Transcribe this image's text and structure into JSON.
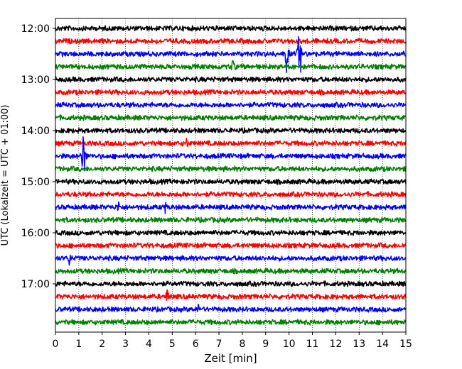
{
  "chart_data": {
    "type": "line",
    "title": "",
    "xlabel": "Zeit  [min]",
    "ylabel": "UTC (Lokalzeit = UTC + 01:00)",
    "xlim": [
      0,
      15
    ],
    "x_ticks": [
      "0",
      "1",
      "2",
      "3",
      "4",
      "5",
      "6",
      "7",
      "8",
      "9",
      "10",
      "11",
      "12",
      "13",
      "14",
      "15"
    ],
    "y_ticks": [
      "12:00",
      "13:00",
      "14:00",
      "15:00",
      "16:00",
      "17:00"
    ],
    "grid": "vertical-dotted",
    "trace_colors": [
      "#000000",
      "#ff0000",
      "#0000ff",
      "#008000"
    ],
    "traces_start": "12:00",
    "trace_interval_minutes": 15,
    "trace_count": 24,
    "events": [
      {
        "trace": 2,
        "minute": 10.45,
        "strength": 1.0
      },
      {
        "trace": 2,
        "minute": 9.9,
        "strength": 0.45
      },
      {
        "trace": 3,
        "minute": 7.6,
        "strength": 0.12
      },
      {
        "trace": 9,
        "minute": 5.6,
        "strength": 0.1
      },
      {
        "trace": 10,
        "minute": 1.2,
        "strength": 0.7
      },
      {
        "trace": 18,
        "minute": 0.6,
        "strength": 0.12
      },
      {
        "trace": 21,
        "minute": 4.8,
        "strength": 0.16
      },
      {
        "trace": 22,
        "minute": 6.1,
        "strength": 0.08
      },
      {
        "trace": 14,
        "minute": 2.7,
        "strength": 0.1
      },
      {
        "trace": 14,
        "minute": 4.7,
        "strength": 0.08
      }
    ]
  }
}
